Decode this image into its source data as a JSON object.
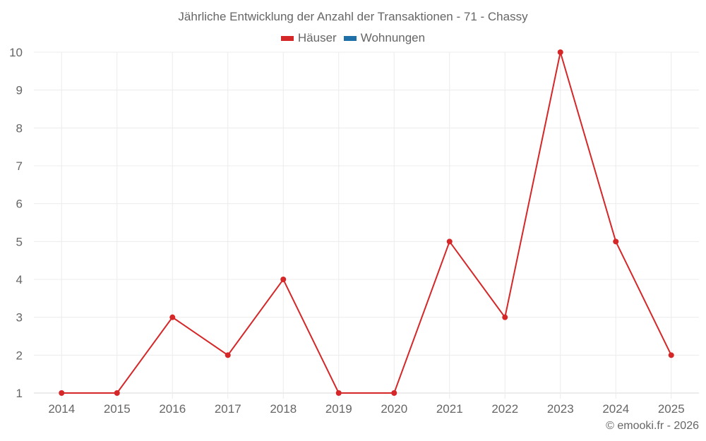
{
  "chart_data": {
    "type": "line",
    "title": "Jährliche Entwicklung der Anzahl der Transaktionen - 71 - Chassy",
    "categories": [
      "2014",
      "2015",
      "2016",
      "2017",
      "2018",
      "2019",
      "2020",
      "2021",
      "2022",
      "2023",
      "2024",
      "2025"
    ],
    "series": [
      {
        "name": "Häuser",
        "color": "#d62728",
        "values": [
          1,
          1,
          3,
          2,
          4,
          1,
          1,
          5,
          3,
          10,
          5,
          2
        ]
      },
      {
        "name": "Wohnungen",
        "color": "#1f6fa8",
        "values": []
      }
    ],
    "xlabel": "",
    "ylabel": "",
    "ylim": [
      1,
      10
    ],
    "yticks": [
      1,
      2,
      3,
      4,
      5,
      6,
      7,
      8,
      9,
      10
    ],
    "grid": true,
    "legend_position": "top"
  },
  "header": {
    "title": "Jährliche Entwicklung der Anzahl der Transaktionen - 71 - Chassy"
  },
  "legend": {
    "items": [
      {
        "label": "Häuser",
        "color": "#d62728"
      },
      {
        "label": "Wohnungen",
        "color": "#1f6fa8"
      }
    ]
  },
  "footer": {
    "credit": "© emooki.fr - 2026"
  }
}
